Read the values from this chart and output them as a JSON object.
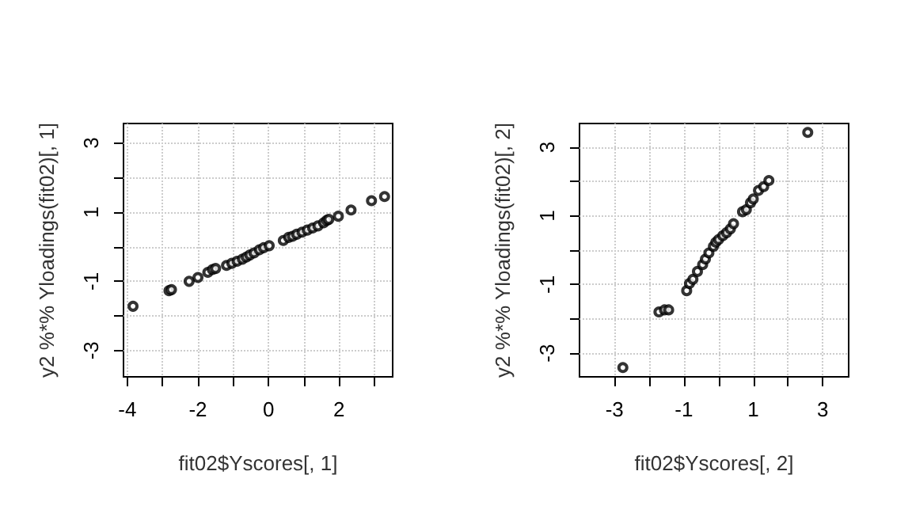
{
  "chart_data": [
    {
      "type": "scatter",
      "xlabel": "fit02$Yscores[, 1]",
      "ylabel": "y2 %*% Yloadings(fit02)[, 1]",
      "marker": "circle",
      "grid": true,
      "xlim": [
        -4.11,
        3.52
      ],
      "ylim": [
        -3.76,
        3.56
      ],
      "xticks": [
        -4,
        {
          "value": -3,
          "label": null
        },
        -2,
        {
          "value": -1,
          "label": null
        },
        0,
        {
          "value": 1,
          "label": null
        },
        2,
        {
          "value": 3,
          "label": null
        }
      ],
      "yticks": [
        -3,
        {
          "value": -2,
          "label": null
        },
        -1,
        {
          "value": 0,
          "label": null
        },
        1,
        {
          "value": 2,
          "label": null
        },
        3
      ],
      "series": [
        {
          "color": "#000000",
          "x": [
            -3.84,
            -2.82,
            -2.75,
            -2.25,
            -2.0,
            -1.72,
            -1.59,
            -1.5,
            -1.19,
            -1.04,
            -0.89,
            -0.74,
            -0.63,
            -0.53,
            -0.41,
            -0.26,
            -0.14,
            0.02,
            0.42,
            0.57,
            0.68,
            0.8,
            0.95,
            1.1,
            1.25,
            1.4,
            1.56,
            1.65,
            1.71,
            1.98,
            2.34,
            2.92,
            3.29
          ],
          "values": [
            -1.72,
            -1.27,
            -1.24,
            -1.0,
            -0.89,
            -0.74,
            -0.66,
            -0.63,
            -0.54,
            -0.48,
            -0.42,
            -0.36,
            -0.3,
            -0.24,
            -0.18,
            -0.09,
            -0.03,
            0.03,
            0.18,
            0.27,
            0.3,
            0.36,
            0.42,
            0.48,
            0.54,
            0.6,
            0.69,
            0.76,
            0.79,
            0.88,
            1.06,
            1.33,
            1.45
          ]
        }
      ]
    },
    {
      "type": "scatter",
      "xlabel": "fit02$Yscores[, 2]",
      "ylabel": "y2 %*% Yloadings(fit02)[, 2]",
      "marker": "circle",
      "grid": true,
      "xlim": [
        -4.01,
        3.75
      ],
      "ylim": [
        -3.69,
        3.69
      ],
      "xticks": [
        -3,
        {
          "value": -2,
          "label": null
        },
        -1,
        {
          "value": 0,
          "label": null
        },
        1,
        {
          "value": 2,
          "label": null
        },
        3
      ],
      "yticks": [
        -3,
        {
          "value": -2,
          "label": null
        },
        -1,
        {
          "value": 0,
          "label": null
        },
        1,
        {
          "value": 2,
          "label": null
        },
        3
      ],
      "series": [
        {
          "color": "#000000",
          "x": [
            -2.76,
            -1.72,
            -1.56,
            -1.44,
            -0.92,
            -0.84,
            -0.74,
            -0.61,
            -0.46,
            -0.38,
            -0.28,
            -0.15,
            -0.08,
            0,
            0.12,
            0.23,
            0.34,
            0.43,
            0.69,
            0.8,
            0.92,
            1.0,
            1.15,
            1.3,
            1.45,
            2.57
          ],
          "values": [
            -3.42,
            -1.8,
            -1.74,
            -1.74,
            -1.18,
            -0.97,
            -0.85,
            -0.62,
            -0.42,
            -0.26,
            -0.08,
            0.11,
            0.23,
            0.31,
            0.42,
            0.51,
            0.62,
            0.77,
            1.12,
            1.18,
            1.38,
            1.49,
            1.74,
            1.85,
            2.03,
            3.43
          ]
        }
      ]
    }
  ]
}
